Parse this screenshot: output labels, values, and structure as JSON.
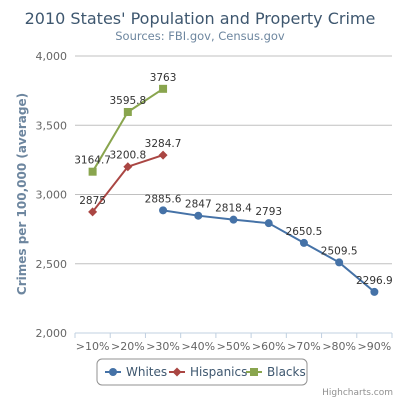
{
  "chart_data": {
    "type": "line",
    "title": "2010 States' Population and Property Crime",
    "subtitle": "Sources: FBI.gov, Census.gov",
    "ylabel": "Crimes per 100,000 (average)",
    "xlabel": "",
    "categories": [
      ">10%",
      ">20%",
      ">30%",
      ">40%",
      ">50%",
      ">60%",
      ">70%",
      ">80%",
      ">90%"
    ],
    "ylim": [
      2000,
      4000
    ],
    "yticks": [
      2000,
      2500,
      3000,
      3500,
      4000
    ],
    "ytick_labels": [
      "2,000",
      "2,500",
      "3,000",
      "3,500",
      "4,000"
    ],
    "grid": true,
    "legend_position": "bottom-center",
    "series": [
      {
        "name": "Whites",
        "color": "#4572A7",
        "marker": "circle",
        "values": [
          null,
          null,
          2885.6,
          2847,
          2818.4,
          2793,
          2650.5,
          2509.5,
          2296.9
        ],
        "labels": [
          null,
          null,
          "2885.6",
          "2847",
          "2818.4",
          "2793",
          "2650.5",
          "2509.5",
          "2296.9"
        ]
      },
      {
        "name": "Hispanics",
        "color": "#AA4643",
        "marker": "diamond",
        "values": [
          2875,
          3200.8,
          3284.7,
          null,
          null,
          null,
          null,
          null,
          null
        ],
        "labels": [
          "2875",
          "3200.8",
          "3284.7",
          null,
          null,
          null,
          null,
          null,
          null
        ]
      },
      {
        "name": "Blacks",
        "color": "#89A54E",
        "marker": "square",
        "values": [
          3164.7,
          3595.8,
          3763,
          null,
          null,
          null,
          null,
          null,
          null
        ],
        "labels": [
          "3164.7",
          "3595.8",
          "3763",
          null,
          null,
          null,
          null,
          null,
          null
        ]
      }
    ]
  },
  "credits": "Highcharts.com"
}
